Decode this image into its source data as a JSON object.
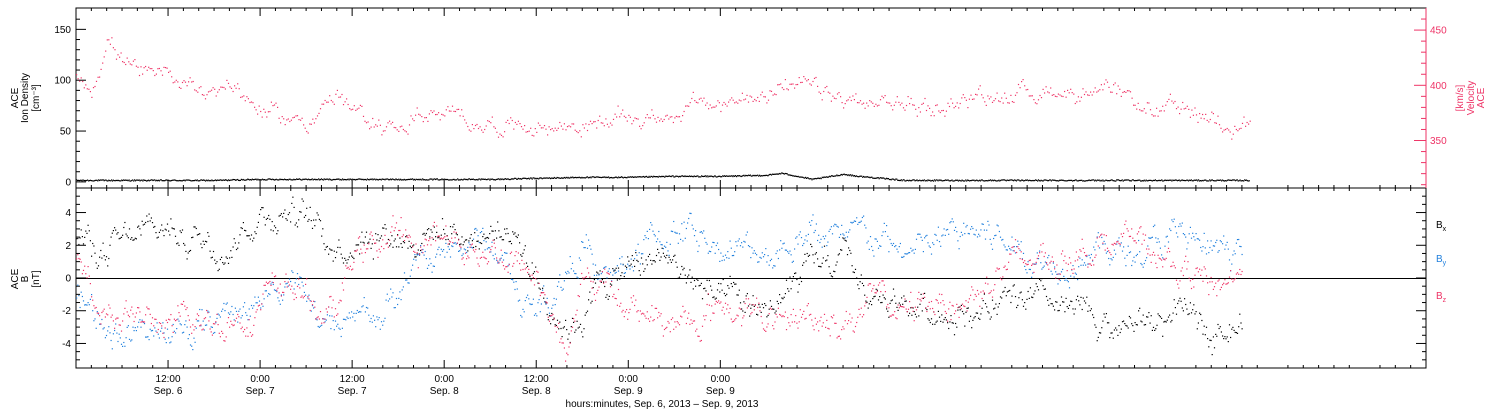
{
  "chart_data": [
    {
      "type": "scatter",
      "panel": "top",
      "ylabel_left_lines": [
        "ACE",
        "Ion Density",
        "[cm⁻³]"
      ],
      "ylabel_right_lines": [
        "ACE",
        "Velocity",
        "[km/s]"
      ],
      "left_ticks": [
        "0",
        "50",
        "100",
        "150"
      ],
      "right_ticks": [
        "350",
        "400",
        "450"
      ],
      "ylim_left": [
        -6,
        171
      ],
      "ylim_right": [
        307,
        470
      ],
      "colors": {
        "density": "#000000",
        "velocity": "#ee3366"
      },
      "series": [
        {
          "axis": "left",
          "x_hours": [
            0,
            6,
            12,
            18,
            24,
            30,
            36,
            42,
            48,
            54,
            60,
            66,
            72,
            78,
            84,
            90,
            92,
            96,
            100,
            102,
            108,
            114,
            120,
            126,
            132,
            138,
            144,
            150,
            153
          ],
          "values": [
            2,
            2,
            2,
            2,
            3,
            3,
            3,
            3,
            3,
            3,
            4,
            5,
            5,
            6,
            6,
            7,
            9,
            3,
            8,
            6,
            2,
            2,
            2,
            2,
            2,
            2,
            2,
            2,
            2
          ]
        },
        {
          "axis": "right",
          "x_hours": [
            0,
            2,
            3,
            4,
            6,
            8,
            10,
            12,
            16,
            18,
            20,
            22,
            24,
            26,
            28,
            30,
            32,
            34,
            36,
            40,
            42,
            44,
            48,
            52,
            56,
            60,
            64,
            68,
            72,
            76,
            80,
            84,
            86,
            88,
            90,
            92,
            96,
            100,
            104,
            108,
            112,
            116,
            120,
            124,
            128,
            132,
            136,
            140,
            144,
            148,
            152,
            153
          ],
          "values": [
            410,
            400,
            420,
            445,
            425,
            410,
            405,
            404,
            402,
            398,
            405,
            390,
            380,
            372,
            368,
            370,
            380,
            392,
            372,
            365,
            360,
            375,
            370,
            368,
            366,
            365,
            364,
            366,
            370,
            372,
            380,
            382,
            384,
            392,
            400,
            398,
            395,
            385,
            382,
            384,
            380,
            388,
            392,
            395,
            398,
            393,
            386,
            378,
            374,
            372,
            370,
            368
          ]
        }
      ]
    },
    {
      "type": "scatter",
      "panel": "bottom",
      "ylabel_lines": [
        "ACE",
        "B",
        "[nT]"
      ],
      "ticks": [
        "-4",
        "-2",
        "0",
        "2",
        "4"
      ],
      "ylim": [
        -5.5,
        5.5
      ],
      "legend": [
        "B",
        "B",
        "B"
      ],
      "legend_subscripts": [
        "x",
        "y",
        "z"
      ],
      "legend_position": "right",
      "series": [
        {
          "name": "Bx",
          "color": "#000000",
          "x_hours": [
            0,
            4,
            8,
            12,
            16,
            20,
            24,
            28,
            30,
            34,
            36,
            40,
            44,
            48,
            52,
            56,
            58,
            60,
            62,
            64,
            66,
            68,
            72,
            76,
            80,
            84,
            88,
            92,
            96,
            100,
            104,
            108,
            112,
            116,
            120,
            124,
            128,
            132,
            136,
            140,
            144,
            148,
            152
          ],
          "values": [
            2.5,
            1.5,
            2.5,
            3.0,
            2.5,
            2.2,
            4.0,
            4.3,
            3.5,
            2.0,
            2.5,
            3.0,
            2.5,
            3.0,
            2.5,
            3.0,
            2.5,
            0.0,
            -1.5,
            -3.0,
            -2.0,
            -0.5,
            0.5,
            1.5,
            0.0,
            -1.5,
            -2.0,
            -1.5,
            0.5,
            1.0,
            -1.5,
            -1.5,
            -2.0,
            -1.8,
            -2.0,
            -1.5,
            -2.0,
            -2.5,
            -3.0,
            -2.7,
            -2.5,
            -2.7,
            -2.8
          ]
        },
        {
          "name": "By",
          "color": "#1f7fdd",
          "x_hours": [
            0,
            4,
            8,
            12,
            16,
            20,
            24,
            28,
            30,
            32,
            34,
            36,
            40,
            44,
            48,
            52,
            56,
            58,
            60,
            62,
            64,
            66,
            68,
            72,
            76,
            80,
            84,
            88,
            92,
            96,
            100,
            104,
            108,
            112,
            116,
            120,
            124,
            128,
            132,
            136,
            140,
            144,
            148,
            152
          ],
          "values": [
            -1.5,
            -2.5,
            -3.5,
            -3.5,
            -3.0,
            -2.0,
            -1.5,
            0.5,
            -1.5,
            -3.0,
            -3.5,
            -2.5,
            -2.0,
            0.5,
            1.5,
            2.5,
            1.0,
            -1.5,
            -2.0,
            -1.0,
            0.5,
            2.5,
            -0.5,
            1.0,
            2.5,
            3.0,
            2.0,
            1.5,
            2.0,
            3.0,
            2.0,
            2.5,
            1.5,
            2.0,
            3.0,
            2.5,
            1.5,
            1.0,
            2.0,
            1.5,
            2.0,
            2.5,
            1.5,
            1.5
          ]
        },
        {
          "name": "Bz",
          "color": "#ee3366",
          "x_hours": [
            0,
            4,
            8,
            12,
            16,
            20,
            24,
            28,
            30,
            32,
            34,
            36,
            40,
            44,
            48,
            52,
            56,
            58,
            60,
            62,
            64,
            66,
            68,
            72,
            76,
            80,
            84,
            88,
            92,
            96,
            100,
            104,
            108,
            112,
            116,
            120,
            124,
            128,
            132,
            136,
            140,
            144,
            148,
            152
          ],
          "values": [
            0.5,
            -1.5,
            -2.5,
            -3.0,
            -3.0,
            -2.5,
            -1.5,
            -0.5,
            -1.0,
            -2.0,
            -2.5,
            1.5,
            2.5,
            2.0,
            2.5,
            2.0,
            1.5,
            0.5,
            0.0,
            -2.0,
            -4.5,
            -1.0,
            0.0,
            -1.5,
            -2.5,
            -3.0,
            -1.5,
            -2.0,
            -3.0,
            -2.0,
            -2.5,
            -1.5,
            -2.0,
            -1.0,
            -1.5,
            0.5,
            1.0,
            1.5,
            2.0,
            2.5,
            1.5,
            0.5,
            -0.5,
            0.5
          ]
        }
      ]
    }
  ],
  "x_axis": {
    "major_tick_hours": [
      12,
      24,
      36,
      48,
      60,
      72,
      84
    ],
    "time_labels": [
      "12:00",
      "0:00",
      "12:00",
      "0:00",
      "12:00",
      "0:00",
      "0:00"
    ],
    "date_labels": [
      "Sep. 6",
      "Sep. 7",
      "Sep. 7",
      "Sep. 8",
      "Sep. 8",
      "Sep. 9",
      "Sep. 9"
    ],
    "xlim_hours": [
      0,
      176
    ],
    "title": "hours:minutes, Sep.  6, 2013 – Sep.  9, 2013"
  }
}
